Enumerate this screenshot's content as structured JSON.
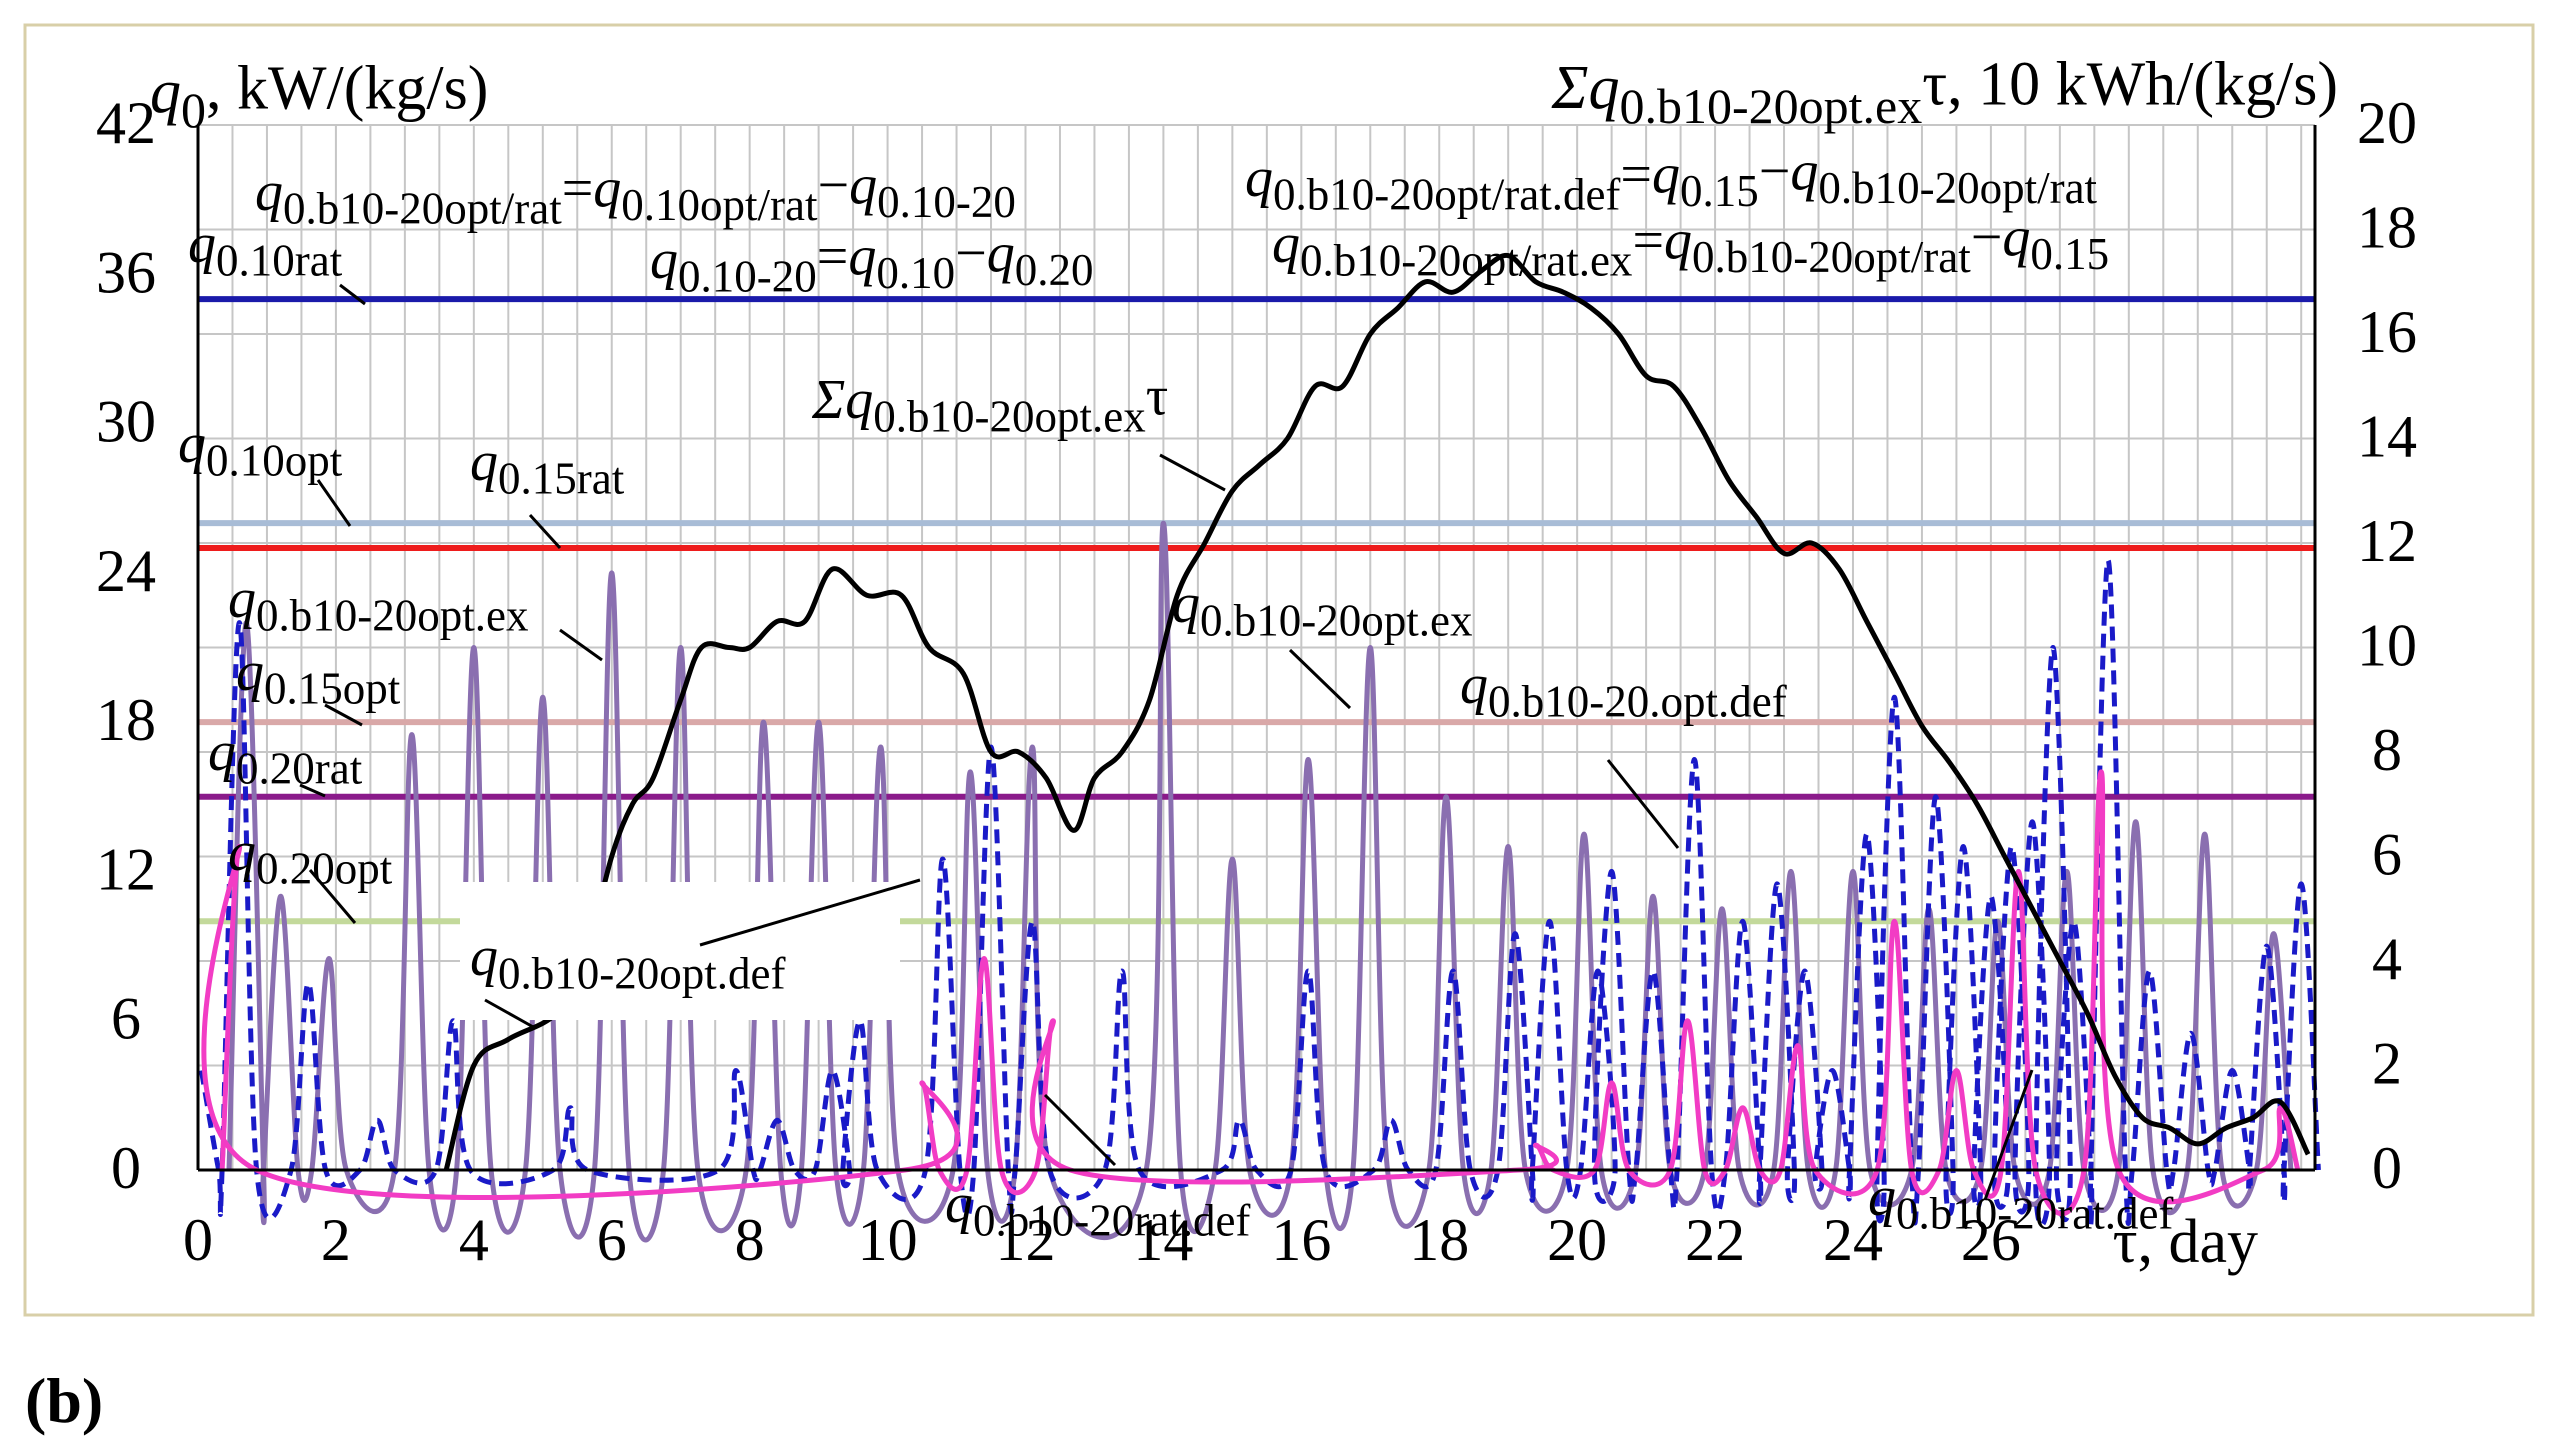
{
  "panel_label": "(b)",
  "chart_data": {
    "type": "line",
    "panel": "b",
    "left_axis": {
      "label_parts": [
        {
          "t": "q",
          "i": true
        },
        {
          "t": "0",
          "sub": true
        },
        {
          "t": ", kW/(kg/s)"
        }
      ],
      "range": [
        0,
        42
      ],
      "ticks": [
        0,
        6,
        12,
        18,
        24,
        30,
        36,
        42
      ]
    },
    "right_axis": {
      "label_parts": [
        {
          "t": "Σq",
          "i": true
        },
        {
          "t": "0.b10-20opt.ex",
          "sub": true
        },
        {
          "t": "τ, 10 kWh/(kg/s)"
        }
      ],
      "range": [
        0,
        20
      ],
      "ticks": [
        0,
        2,
        4,
        6,
        8,
        10,
        12,
        14,
        16,
        18,
        20
      ]
    },
    "x_axis": {
      "label": "τ, day",
      "range": [
        0,
        30.7
      ],
      "ticks": [
        0,
        2,
        4,
        6,
        8,
        10,
        12,
        14,
        16,
        18,
        20,
        22,
        24,
        26
      ],
      "grid_step": 0.5
    },
    "grid": true,
    "hlines": [
      {
        "name": "q0.10rat",
        "value": 35.0,
        "color": "#1a1aaa"
      },
      {
        "name": "q0.10opt",
        "value": 26.0,
        "color": "#a8bcd6"
      },
      {
        "name": "q0.15rat",
        "value": 25.0,
        "color": "#ee1c1c"
      },
      {
        "name": "q0.15opt",
        "value": 18.0,
        "color": "#d9a8a8"
      },
      {
        "name": "q0.20rat",
        "value": 15.0,
        "color": "#8a1a8a"
      },
      {
        "name": "q0.20opt",
        "value": 10.0,
        "color": "#c3d99b"
      }
    ],
    "series": [
      {
        "name": "q0.b10-20opt.ex",
        "style": "solid",
        "color": "#8a6fb0",
        "axis": "left",
        "peaks": [
          [
            0.7,
            22
          ],
          [
            1.2,
            11
          ],
          [
            1.9,
            8.5
          ],
          [
            3.1,
            17.5
          ],
          [
            4.0,
            21
          ],
          [
            5.0,
            19
          ],
          [
            6.0,
            24
          ],
          [
            7.0,
            21
          ],
          [
            8.2,
            18
          ],
          [
            9.0,
            18
          ],
          [
            9.9,
            17
          ],
          [
            11.2,
            16
          ],
          [
            12.1,
            17
          ],
          [
            14.0,
            26
          ],
          [
            15.0,
            12.5
          ],
          [
            16.1,
            16.5
          ],
          [
            17.0,
            21
          ],
          [
            18.1,
            15
          ],
          [
            19.0,
            13
          ],
          [
            20.1,
            13.5
          ],
          [
            21.1,
            11
          ],
          [
            22.1,
            10.5
          ],
          [
            23.1,
            12
          ],
          [
            24.0,
            12
          ],
          [
            25.1,
            10.5
          ],
          [
            26.1,
            10
          ],
          [
            27.1,
            12
          ],
          [
            28.1,
            14
          ],
          [
            29.1,
            13.5
          ],
          [
            30.1,
            9.5
          ]
        ]
      },
      {
        "name": "q0.b10-20.opt.def",
        "style": "dashed",
        "color": "#1a1ac8",
        "axis": "left",
        "peaks": [
          [
            0.05,
            4
          ],
          [
            0.6,
            22
          ],
          [
            1.6,
            7.5
          ],
          [
            2.6,
            2
          ],
          [
            3.7,
            6
          ],
          [
            5.4,
            2.5
          ],
          [
            7.8,
            4
          ],
          [
            8.4,
            2
          ],
          [
            9.2,
            4
          ],
          [
            9.6,
            6
          ],
          [
            10.8,
            12.5
          ],
          [
            11.5,
            17
          ],
          [
            12.1,
            10
          ],
          [
            13.4,
            8
          ],
          [
            15.1,
            2
          ],
          [
            16.1,
            8
          ],
          [
            17.3,
            2
          ],
          [
            18.2,
            8
          ],
          [
            19.1,
            9.5
          ],
          [
            19.6,
            10
          ],
          [
            20.3,
            8
          ],
          [
            20.5,
            12
          ],
          [
            21.1,
            8
          ],
          [
            21.7,
            16.5
          ],
          [
            22.4,
            10
          ],
          [
            22.9,
            11.5
          ],
          [
            23.3,
            8
          ],
          [
            23.7,
            4
          ],
          [
            24.2,
            13.5
          ],
          [
            24.6,
            19
          ],
          [
            25.2,
            15
          ],
          [
            25.6,
            13
          ],
          [
            26.0,
            11
          ],
          [
            26.3,
            13
          ],
          [
            26.6,
            14
          ],
          [
            26.9,
            21
          ],
          [
            27.2,
            10
          ],
          [
            27.7,
            24.5
          ],
          [
            28.3,
            8
          ],
          [
            28.9,
            5.5
          ],
          [
            29.5,
            4
          ],
          [
            30.0,
            9
          ],
          [
            30.5,
            11.5
          ]
        ]
      },
      {
        "name": "q0.b10-20rat.def",
        "style": "solid",
        "color": "#f23cc4",
        "axis": "left",
        "peaks": [
          [
            0.6,
            13
          ],
          [
            10.5,
            3.5
          ],
          [
            11.4,
            8.5
          ],
          [
            12.4,
            6
          ],
          [
            19.4,
            1
          ],
          [
            20.5,
            3.5
          ],
          [
            21.6,
            6
          ],
          [
            22.4,
            2.5
          ],
          [
            23.2,
            5
          ],
          [
            24.6,
            10
          ],
          [
            25.5,
            4
          ],
          [
            26.4,
            12
          ],
          [
            27.6,
            16
          ],
          [
            30.2,
            2.5
          ]
        ]
      },
      {
        "name": "Σq0.b10-20opt.exτ",
        "style": "solid",
        "color": "#000000",
        "axis": "right",
        "points": [
          [
            3.6,
            0
          ],
          [
            4.0,
            2
          ],
          [
            4.5,
            2.5
          ],
          [
            5.2,
            3
          ],
          [
            5.6,
            4
          ],
          [
            6.0,
            6
          ],
          [
            6.3,
            7
          ],
          [
            6.6,
            7.5
          ],
          [
            7.0,
            9
          ],
          [
            7.3,
            10
          ],
          [
            7.7,
            10
          ],
          [
            8.0,
            10
          ],
          [
            8.4,
            10.5
          ],
          [
            8.8,
            10.5
          ],
          [
            9.2,
            11.5
          ],
          [
            9.7,
            11
          ],
          [
            10.2,
            11
          ],
          [
            10.6,
            10
          ],
          [
            11.1,
            9.5
          ],
          [
            11.5,
            8
          ],
          [
            11.9,
            8
          ],
          [
            12.3,
            7.5
          ],
          [
            12.7,
            6.5
          ],
          [
            13.0,
            7.5
          ],
          [
            13.4,
            8
          ],
          [
            13.8,
            9
          ],
          [
            14.2,
            11
          ],
          [
            14.6,
            12
          ],
          [
            15.0,
            13
          ],
          [
            15.4,
            13.5
          ],
          [
            15.8,
            14
          ],
          [
            16.2,
            15
          ],
          [
            16.6,
            15
          ],
          [
            17.0,
            16
          ],
          [
            17.4,
            16.5
          ],
          [
            17.8,
            17
          ],
          [
            18.2,
            16.8
          ],
          [
            18.6,
            17.2
          ],
          [
            19.0,
            17.5
          ],
          [
            19.4,
            17
          ],
          [
            19.8,
            16.8
          ],
          [
            20.2,
            16.5
          ],
          [
            20.6,
            16
          ],
          [
            21.0,
            15.2
          ],
          [
            21.4,
            15
          ],
          [
            21.8,
            14.2
          ],
          [
            22.2,
            13.2
          ],
          [
            22.6,
            12.5
          ],
          [
            23.0,
            11.8
          ],
          [
            23.4,
            12
          ],
          [
            23.8,
            11.5
          ],
          [
            24.2,
            10.5
          ],
          [
            24.6,
            9.5
          ],
          [
            25.0,
            8.5
          ],
          [
            25.4,
            7.8
          ],
          [
            25.8,
            7
          ],
          [
            26.2,
            6
          ],
          [
            26.6,
            5
          ],
          [
            27.0,
            4
          ],
          [
            27.4,
            3
          ],
          [
            27.8,
            1.8
          ],
          [
            28.2,
            1
          ],
          [
            28.6,
            0.8
          ],
          [
            29.0,
            0.5
          ],
          [
            29.4,
            0.8
          ],
          [
            29.8,
            1
          ],
          [
            30.2,
            1.3
          ],
          [
            30.6,
            0.3
          ]
        ]
      }
    ],
    "equations": [
      {
        "parts": [
          {
            "t": "q",
            "i": true
          },
          {
            "t": "0.b10-20opt/rat",
            "sub": true
          },
          {
            "t": "="
          },
          {
            "t": "q",
            "i": true
          },
          {
            "t": "0.10opt/rat",
            "sub": true
          },
          {
            "t": "−"
          },
          {
            "t": "q",
            "i": true
          },
          {
            "t": "0.10-20",
            "sub": true
          }
        ]
      },
      {
        "parts": [
          {
            "t": "q",
            "i": true
          },
          {
            "t": "0.10-20",
            "sub": true
          },
          {
            "t": "="
          },
          {
            "t": "q",
            "i": true
          },
          {
            "t": "0.10",
            "sub": true
          },
          {
            "t": "−"
          },
          {
            "t": "q",
            "i": true
          },
          {
            "t": "0.20",
            "sub": true
          }
        ]
      },
      {
        "parts": [
          {
            "t": "q",
            "i": true
          },
          {
            "t": "0.b10-20opt/rat.def",
            "sub": true
          },
          {
            "t": "="
          },
          {
            "t": "q",
            "i": true
          },
          {
            "t": "0.15",
            "sub": true
          },
          {
            "t": "−"
          },
          {
            "t": "q",
            "i": true
          },
          {
            "t": "0.b10-20opt/rat",
            "sub": true
          }
        ]
      },
      {
        "parts": [
          {
            "t": "q",
            "i": true
          },
          {
            "t": "0.b10-20opt/rat.ex",
            "sub": true
          },
          {
            "t": "="
          },
          {
            "t": "q",
            "i": true
          },
          {
            "t": "0.b10-20opt/rat",
            "sub": true
          },
          {
            "t": "−"
          },
          {
            "t": "q",
            "i": true
          },
          {
            "t": "0.15",
            "sub": true
          }
        ]
      }
    ],
    "annotations": [
      {
        "parts": [
          {
            "t": "q",
            "i": true
          },
          {
            "t": "0.10rat",
            "sub": true
          }
        ]
      },
      {
        "parts": [
          {
            "t": "q",
            "i": true
          },
          {
            "t": "0.10opt",
            "sub": true
          }
        ]
      },
      {
        "parts": [
          {
            "t": "q",
            "i": true
          },
          {
            "t": "0.15rat",
            "sub": true
          }
        ]
      },
      {
        "parts": [
          {
            "t": "q",
            "i": true
          },
          {
            "t": "0.b10-20opt.ex",
            "sub": true
          }
        ]
      },
      {
        "parts": [
          {
            "t": "q",
            "i": true
          },
          {
            "t": "0.15opt",
            "sub": true
          }
        ]
      },
      {
        "parts": [
          {
            "t": "q",
            "i": true
          },
          {
            "t": "0.20rat",
            "sub": true
          }
        ]
      },
      {
        "parts": [
          {
            "t": "q",
            "i": true
          },
          {
            "t": "0.20opt",
            "sub": true
          }
        ]
      },
      {
        "parts": [
          {
            "t": "q",
            "i": true
          },
          {
            "t": "0.b10-20opt.def",
            "sub": true
          }
        ]
      },
      {
        "parts": [
          {
            "t": "Σq",
            "i": true
          },
          {
            "t": "0.b10-20opt.ex",
            "sub": true
          },
          {
            "t": "τ"
          }
        ]
      },
      {
        "parts": [
          {
            "t": "q",
            "i": true
          },
          {
            "t": "0.b10-20opt.ex",
            "sub": true
          }
        ]
      },
      {
        "parts": [
          {
            "t": "q",
            "i": true
          },
          {
            "t": "0.b10-20.opt.def",
            "sub": true
          }
        ]
      },
      {
        "parts": [
          {
            "t": "q",
            "i": true
          },
          {
            "t": "0.b10-20rat.def",
            "sub": true
          }
        ]
      },
      {
        "parts": [
          {
            "t": "q",
            "i": true
          },
          {
            "t": "0.b10-20rat.def",
            "sub": true
          }
        ]
      }
    ]
  }
}
